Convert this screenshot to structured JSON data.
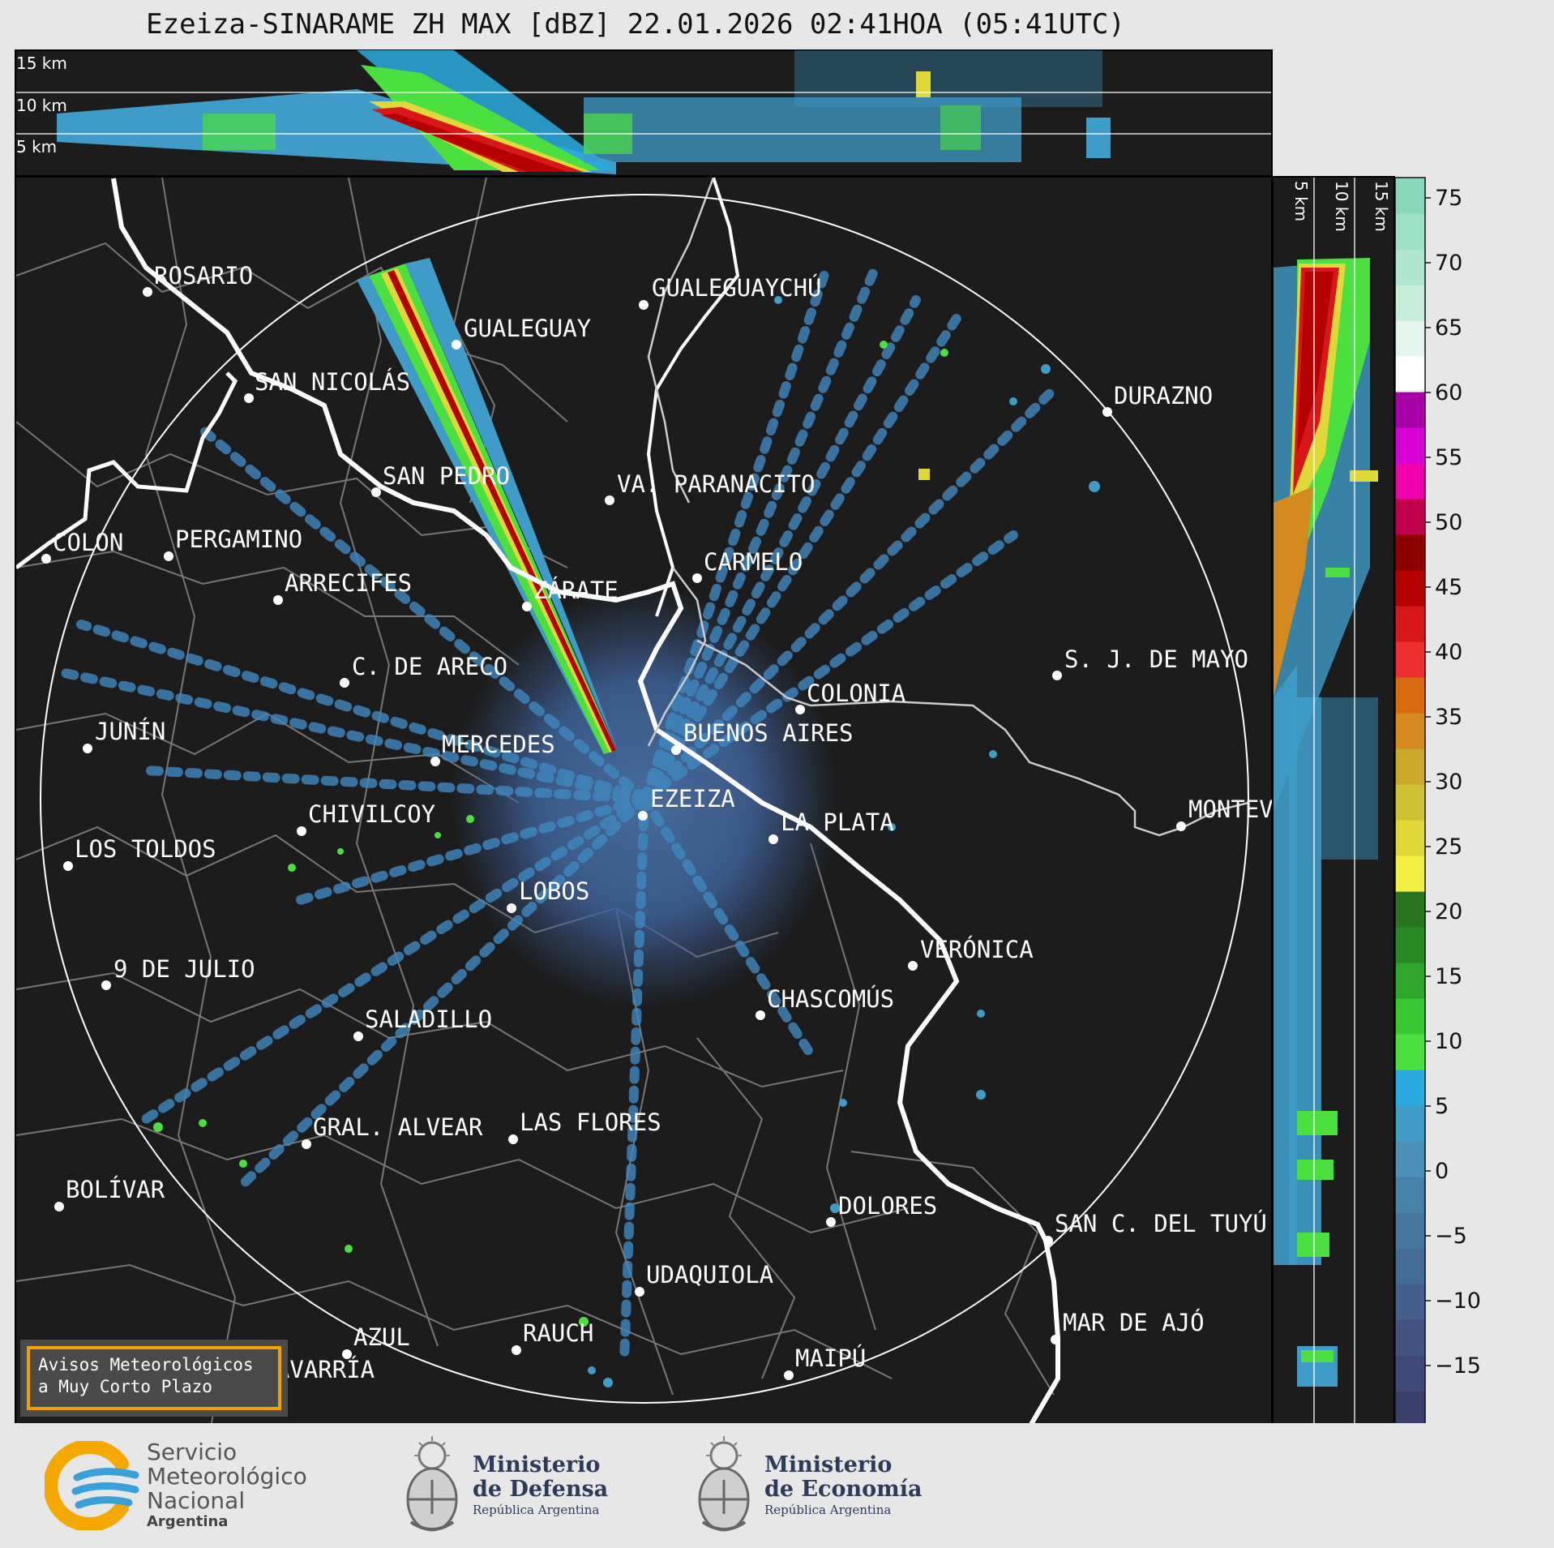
{
  "title": "Ezeiza-SINARAME ZH MAX [dBZ] 22.01.2026 02:41HOA (05:41UTC)",
  "cross_section_top": {
    "labels": [
      "15 km",
      "10 km",
      "5 km"
    ]
  },
  "cross_section_right": {
    "labels": [
      "5 km",
      "10 km",
      "15 km"
    ]
  },
  "colorbar": {
    "ticks": [
      "75",
      "70",
      "65",
      "60",
      "55",
      "50",
      "45",
      "40",
      "35",
      "30",
      "25",
      "20",
      "15",
      "10",
      "5",
      "0",
      "−5",
      "−10",
      "−15"
    ],
    "colors": [
      "#3b3f6b",
      "#404a77",
      "#435381",
      "#44608c",
      "#456c96",
      "#46789f",
      "#4682a8",
      "#4a90b8",
      "#3f9cc8",
      "#2aaae0",
      "#4be040",
      "#3ac933",
      "#2ea62b",
      "#288a24",
      "#2a7320",
      "#f0ee40",
      "#e0d838",
      "#cec232",
      "#c9a82a",
      "#d48a1e",
      "#d86a12",
      "#ec3030",
      "#d81818",
      "#b40000",
      "#8c0000",
      "#c0004a",
      "#ee00aa",
      "#d400d4",
      "#a800a8",
      "#ffffff",
      "#e4f5ee",
      "#c6ecda",
      "#b0e6cf",
      "#9ce0c6",
      "#8ad8bc"
    ]
  },
  "cities": [
    {
      "name": "ROSARIO"
    },
    {
      "name": "GUALEGUAYCHÚ"
    },
    {
      "name": "GUALEGUAY"
    },
    {
      "name": "SAN NICOLÁS"
    },
    {
      "name": "DURAZNO"
    },
    {
      "name": "SAN PEDRO"
    },
    {
      "name": "VA. PARANACITO"
    },
    {
      "name": "COLON"
    },
    {
      "name": "PERGAMINO"
    },
    {
      "name": "CARMELO"
    },
    {
      "name": "ARRECIFES"
    },
    {
      "name": "ZÁRATE"
    },
    {
      "name": "S. J. DE MAYO"
    },
    {
      "name": "C. DE ARECO"
    },
    {
      "name": "COLONIA"
    },
    {
      "name": "JUNÍN"
    },
    {
      "name": "BUENOS AIRES"
    },
    {
      "name": "MERCEDES"
    },
    {
      "name": "EZEIZA"
    },
    {
      "name": "MONTEV"
    },
    {
      "name": "CHIVILCOY"
    },
    {
      "name": "LA PLATA"
    },
    {
      "name": "LOS TOLDOS"
    },
    {
      "name": "LOBOS"
    },
    {
      "name": "VERÓNICA"
    },
    {
      "name": "9 DE JULIO"
    },
    {
      "name": "CHASCOMÚS"
    },
    {
      "name": "SALADILLO"
    },
    {
      "name": "GRAL. ALVEAR"
    },
    {
      "name": "LAS FLORES"
    },
    {
      "name": "BOLÍVAR"
    },
    {
      "name": "DOLORES"
    },
    {
      "name": "SAN C. DEL TUYÚ"
    },
    {
      "name": "UDAQUIOLA"
    },
    {
      "name": "MAR DE AJÓ"
    },
    {
      "name": "AZUL"
    },
    {
      "name": "RAUCH"
    },
    {
      "name": "OLAVARRÍA"
    },
    {
      "name": "MAIPÚ"
    }
  ],
  "avisos": {
    "line1": "Avisos Meteorológicos",
    "line2": "a Muy Corto Plazo"
  },
  "footer": {
    "smn": {
      "line1": "Servicio",
      "line2": "Meteorológico",
      "line3": "Nacional",
      "line4": "Argentina"
    },
    "defensa": {
      "line1": "Ministerio",
      "line2": "de Defensa",
      "line3": "República Argentina"
    },
    "economia": {
      "line1": "Ministerio",
      "line2": "de Economía",
      "line3": "República Argentina"
    }
  }
}
